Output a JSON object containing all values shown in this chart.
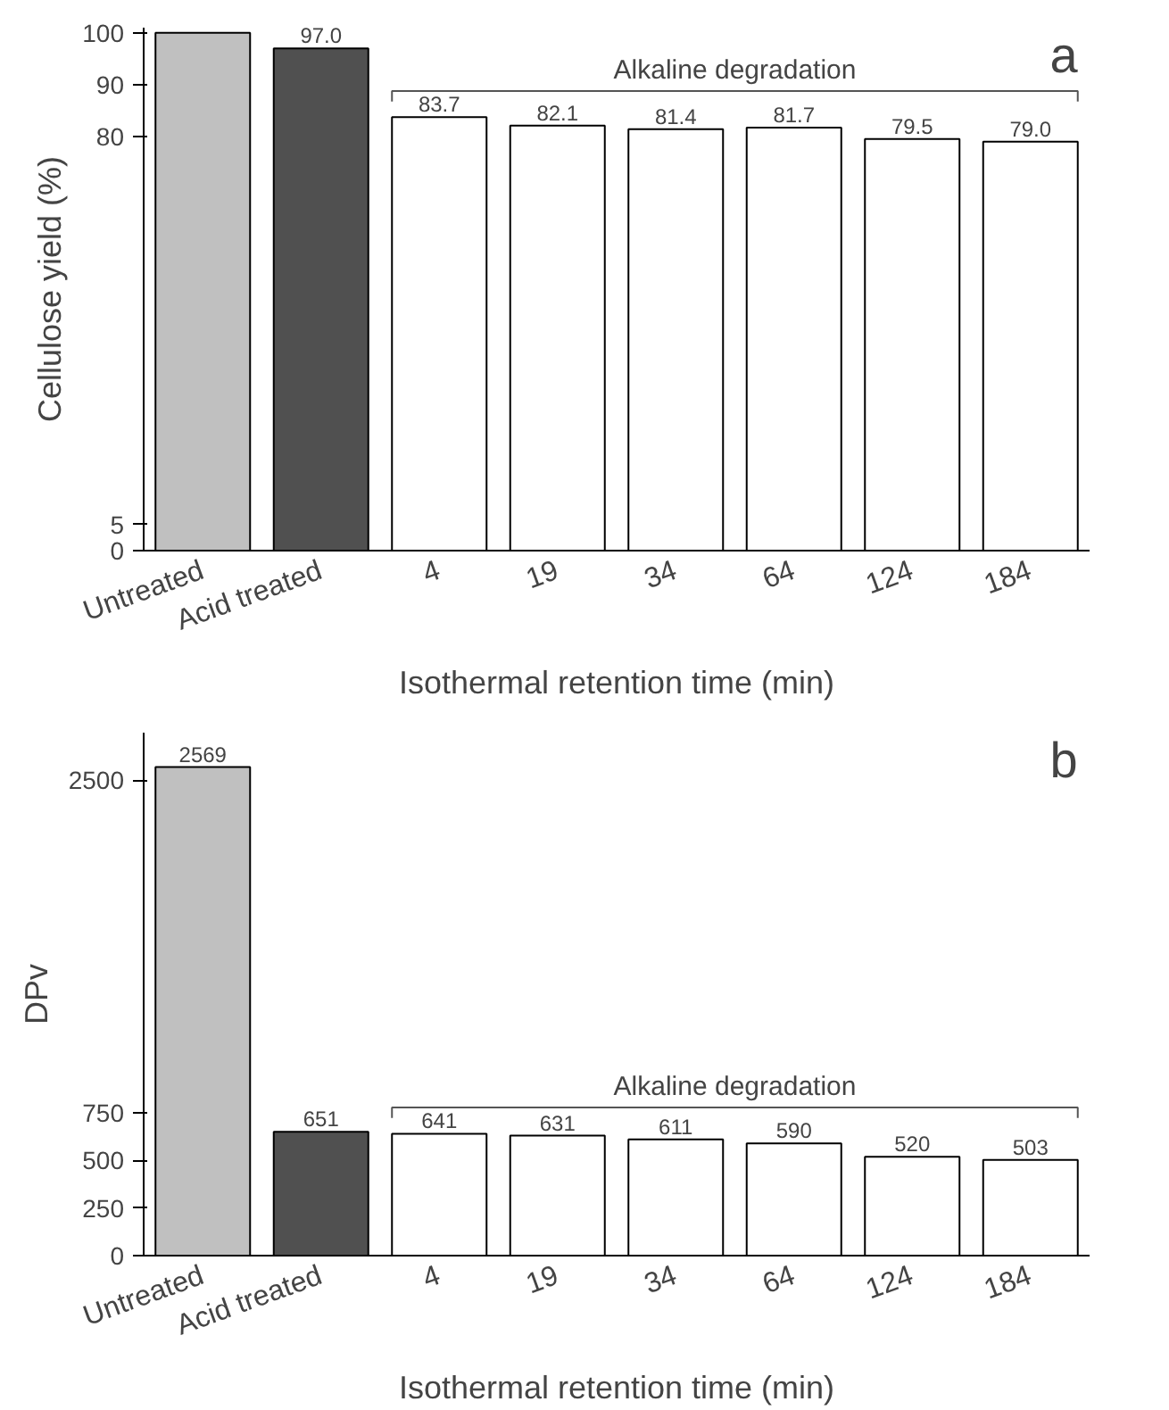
{
  "chart_data": [
    {
      "type": "bar",
      "title": "a",
      "ylabel": "Cellulose yield (%)",
      "xlabel": "Isothermal retention time (min)",
      "categories": [
        "Untreated",
        "Acid treated",
        "4",
        "19",
        "34",
        "64",
        "124",
        "184"
      ],
      "values": [
        100,
        97.0,
        83.7,
        82.1,
        81.4,
        81.7,
        79.5,
        79.0
      ],
      "value_labels": [
        null,
        "97.0",
        "83.7",
        "82.1",
        "81.4",
        "81.7",
        "79.5",
        "79.0"
      ],
      "colors": [
        "#c0c0c0",
        "#505050",
        "#ffffff",
        "#ffffff",
        "#ffffff",
        "#ffffff",
        "#ffffff",
        "#ffffff"
      ],
      "ylim": [
        0,
        101
      ],
      "yticks": [
        0,
        5,
        80,
        90,
        100
      ],
      "grid": false,
      "annotations": [
        "Alkaline degradation"
      ]
    },
    {
      "type": "bar",
      "title": "b",
      "ylabel": "DPv",
      "xlabel": "Isothermal retention time (min)",
      "categories": [
        "Untreated",
        "Acid treated",
        "4",
        "19",
        "34",
        "64",
        "124",
        "184"
      ],
      "values": [
        2569,
        651,
        641,
        631,
        611,
        590,
        520,
        503
      ],
      "data_labels": true,
      "colors": [
        "#c0c0c0",
        "#505050",
        "#ffffff",
        "#ffffff",
        "#ffffff",
        "#ffffff",
        "#ffffff",
        "#ffffff"
      ],
      "ylim": [
        0,
        2750
      ],
      "yticks": [
        0,
        250,
        500,
        750,
        2500
      ],
      "grid": false,
      "annotations": [
        "Alkaline degradation"
      ]
    }
  ]
}
